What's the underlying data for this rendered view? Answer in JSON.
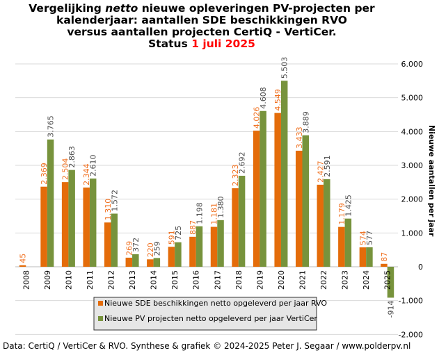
{
  "chart_data": {
    "type": "bar",
    "title_lines": [
      [
        "Vergelijking ",
        "netto",
        " nieuwe opleveringen PV-projecten per"
      ],
      [
        "kalenderjaar: aantallen SDE beschikkingen RVO"
      ],
      [
        "versus aantallen projecten CertiQ - VertiCer."
      ]
    ],
    "status_label": "Status ",
    "status_date": "1 juli 2025",
    "ylabel": "Nieuwe aantallen per jaar",
    "ylim": [
      -2000,
      6000
    ],
    "yticks": [
      -2000,
      -1000,
      0,
      1000,
      2000,
      3000,
      4000,
      5000,
      6000
    ],
    "ytick_labels": [
      "-2.000",
      "-1.000",
      "0",
      "1.000",
      "2.000",
      "3.000",
      "4.000",
      "5.000",
      "6.000"
    ],
    "grid": true,
    "legend_position": "bottom-center",
    "categories": [
      "2008",
      "2009",
      "2010",
      "2011",
      "2012",
      "2013",
      "2014",
      "2015",
      "2016",
      "2017",
      "2018",
      "2019",
      "2020",
      "2021",
      "2022",
      "2023",
      "2024",
      "2025"
    ],
    "series": [
      {
        "name": "Nieuwe SDE beschikkingen netto opgeleverd per jaar RVO",
        "color": "#e46c0a",
        "values": [
          45,
          2369,
          2504,
          2344,
          1310,
          269,
          220,
          591,
          887,
          1181,
          2323,
          4026,
          4549,
          3433,
          2427,
          1179,
          574,
          87
        ],
        "labels": [
          "45",
          "2.369",
          "2.504",
          "2.344",
          "1.310",
          "269",
          "220",
          "591",
          "887",
          "1.181",
          "2.323",
          "4.026",
          "4.549",
          "3.433",
          "2.427",
          "1.179",
          "574",
          "87"
        ]
      },
      {
        "name": "Nieuwe PV projecten netto opgeleverd per jaar VertiCer",
        "color": "#77933c",
        "values": [
          null,
          3765,
          2863,
          2610,
          1572,
          372,
          259,
          725,
          1198,
          1380,
          2692,
          4608,
          5503,
          3889,
          2591,
          1425,
          577,
          -914
        ],
        "labels": [
          null,
          "3.765",
          "2.863",
          "2.610",
          "1.572",
          "372",
          "259",
          "725",
          "1.198",
          "1.380",
          "2.692",
          "4.608",
          "5.503",
          "3.889",
          "2.591",
          "1.425",
          "577",
          "-914"
        ]
      }
    ],
    "footer": "Data: CertiQ / VertiCer & RVO. Synthese & grafiek © 2024-2025 Peter J. Segaar / www.polderpv.nl"
  }
}
